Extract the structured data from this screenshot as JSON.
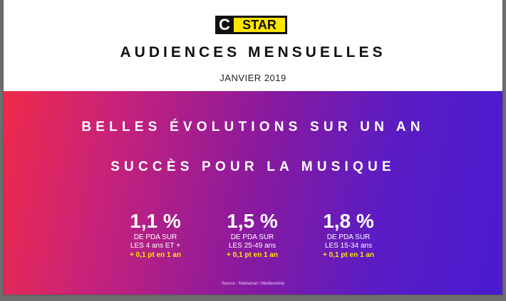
{
  "logo": {
    "letter": "C",
    "word": "STAR"
  },
  "header": {
    "title": "AUDIENCES MENSUELLES",
    "subtitle": "JANVIER 2019"
  },
  "headlines": [
    "BELLES ÉVOLUTIONS SUR UN AN",
    "SUCCÈS POUR LA MUSIQUE"
  ],
  "stats": [
    {
      "value": "1,1 %",
      "line1": "DE PDA SUR",
      "line2": "LES 4 ans ET +",
      "delta": "+ 0,1 pt en 1 an"
    },
    {
      "value": "1,5 %",
      "line1": "DE PDA SUR",
      "line2": "LES 25-49 ans",
      "delta": "+ 0,1 pt en 1 an"
    },
    {
      "value": "1,8 %",
      "line1": "DE PDA SUR",
      "line2": "LES 15-34 ans",
      "delta": "+ 0,1 pt en 1 an"
    }
  ],
  "source": "Source : Médiamat / Médiamétrie",
  "colors": {
    "gradient_start": "#ef2a4a",
    "gradient_end": "#4a1ad0",
    "accent_yellow": "#ffe600",
    "logo_black": "#111111"
  }
}
